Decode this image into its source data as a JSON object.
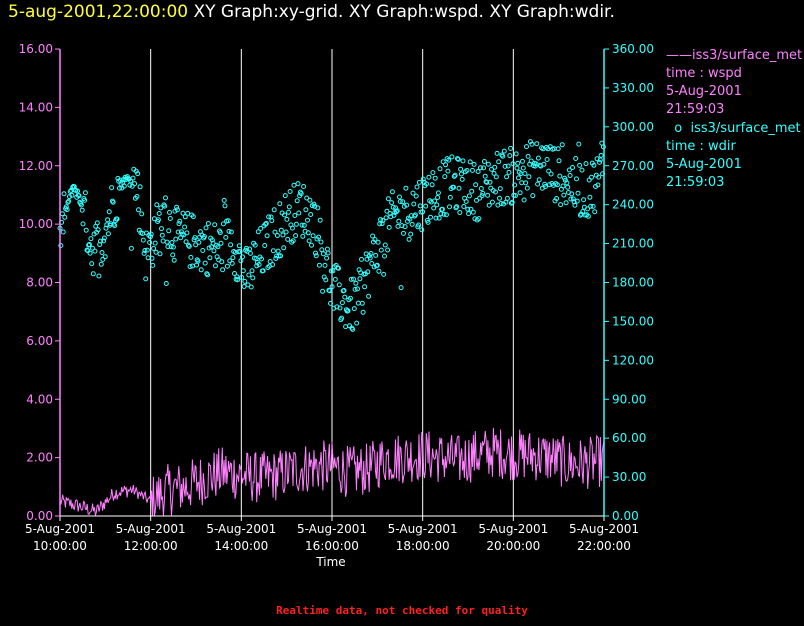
{
  "title": {
    "datetime": "5-aug-2001,22:00:00",
    "graphs": "XY Graph:xy-grid.  XY Graph:wspd.  XY Graph:wdir."
  },
  "footer": "Realtime data, not checked for quality",
  "colors": {
    "wspd": "#ff80ff",
    "wdir": "#33ffff",
    "grid": "#ffffff",
    "title_date": "#ffff33",
    "footer": "#ff2020"
  },
  "legend": [
    {
      "marker": "line",
      "source": "iss3/surface_met",
      "var": "time : wspd",
      "date": "5-Aug-2001",
      "time": "21:59:03"
    },
    {
      "marker": "circle",
      "source": "iss3/surface_met",
      "var": "time : wdir",
      "date": "5-Aug-2001",
      "time": "21:59:03"
    }
  ],
  "chart_data": {
    "type": "line+scatter",
    "xlabel": "Time",
    "xlim": [
      10.0,
      22.0
    ],
    "x_ticks": [
      {
        "value": 10,
        "date": "5-Aug-2001",
        "time": "10:00:00"
      },
      {
        "value": 12,
        "date": "5-Aug-2001",
        "time": "12:00:00"
      },
      {
        "value": 14,
        "date": "5-Aug-2001",
        "time": "14:00:00"
      },
      {
        "value": 16,
        "date": "5-Aug-2001",
        "time": "16:00:00"
      },
      {
        "value": 18,
        "date": "5-Aug-2001",
        "time": "18:00:00"
      },
      {
        "value": 20,
        "date": "5-Aug-2001",
        "time": "20:00:00"
      },
      {
        "value": 22,
        "date": "5-Aug-2001",
        "time": "22:00:00"
      }
    ],
    "y_left": {
      "lim": [
        0,
        16
      ],
      "ticks": [
        "0.00",
        "2.00",
        "4.00",
        "6.00",
        "8.00",
        "10.00",
        "12.00",
        "14.00",
        "16.00"
      ]
    },
    "y_right": {
      "lim": [
        0,
        360
      ],
      "ticks": [
        "0.00",
        "30.00",
        "60.00",
        "90.00",
        "120.00",
        "150.00",
        "180.00",
        "210.00",
        "240.00",
        "270.00",
        "300.00",
        "330.00",
        "360.00"
      ]
    },
    "grid": "vertical",
    "series": [
      {
        "axis": "left",
        "style": "line",
        "trend_x": [
          10.0,
          10.4,
          10.8,
          11.2,
          11.6,
          12.0,
          12.4,
          12.8,
          13.2,
          13.6,
          14.0,
          14.4,
          14.8,
          15.2,
          15.6,
          16.0,
          16.4,
          16.8,
          17.2,
          17.6,
          18.0,
          18.4,
          18.8,
          19.2,
          19.6,
          20.0,
          20.4,
          20.8,
          21.2,
          21.6,
          22.0
        ],
        "trend_y": [
          0.5,
          0.35,
          0.15,
          0.8,
          0.9,
          0.5,
          0.9,
          1.0,
          1.3,
          1.5,
          1.4,
          1.3,
          1.4,
          1.6,
          1.7,
          1.7,
          1.5,
          1.6,
          2.0,
          2.0,
          2.1,
          2.0,
          1.9,
          2.1,
          2.2,
          2.1,
          2.1,
          2.0,
          1.8,
          1.8,
          1.9
        ]
      },
      {
        "axis": "right",
        "style": "circle",
        "trend_x": [
          10.0,
          10.15,
          10.3,
          10.5,
          10.7,
          10.9,
          11.1,
          11.3,
          11.5,
          11.7,
          11.9,
          12.1,
          12.3,
          12.6,
          12.9,
          13.2,
          13.5,
          13.8,
          14.1,
          14.4,
          14.7,
          15.0,
          15.3,
          15.6,
          15.8,
          16.0,
          16.2,
          16.4,
          16.6,
          16.8,
          17.1,
          17.4,
          17.7,
          18.0,
          18.3,
          18.6,
          18.9,
          19.2,
          19.5,
          19.8,
          20.1,
          20.4,
          20.7,
          21.0,
          21.3,
          21.6,
          21.9,
          22.0
        ],
        "trend_y": [
          215,
          238,
          255,
          238,
          207,
          210,
          232,
          255,
          260,
          255,
          200,
          218,
          228,
          215,
          212,
          208,
          205,
          212,
          185,
          200,
          215,
          230,
          238,
          228,
          205,
          175,
          168,
          160,
          168,
          190,
          215,
          232,
          235,
          243,
          250,
          255,
          255,
          250,
          258,
          262,
          262,
          268,
          270,
          262,
          255,
          250,
          260,
          285
        ]
      }
    ]
  }
}
